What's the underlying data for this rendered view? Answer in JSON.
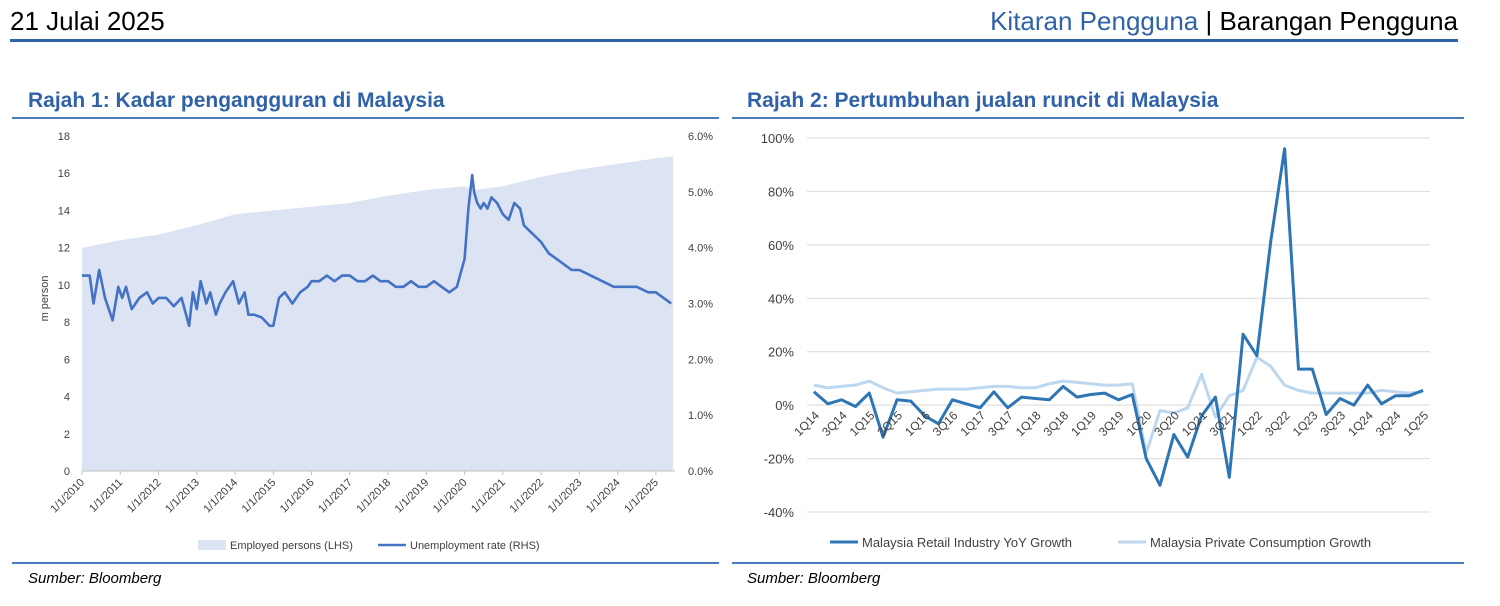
{
  "header": {
    "date": "21 Julai 2025",
    "section": "Kitaran Pengguna",
    "separator": " | ",
    "subsection": "Barangan Pengguna"
  },
  "colors": {
    "accent": "#2f62a8",
    "employed_fill": "#dce3f3",
    "unemployment_line": "#4472c4",
    "retail_line": "#2e75b6",
    "consumption_line": "#bdd7ee"
  },
  "figure1": {
    "title": "Rajah 1: Kadar pengangguran di Malaysia",
    "source": "Sumber: Bloomberg"
  },
  "figure2": {
    "title": "Rajah 2: Pertumbuhan jualan runcit di Malaysia",
    "source": "Sumber: Bloomberg"
  },
  "chart_data": [
    {
      "type": "area",
      "title": "",
      "ylabel": "m person",
      "y2label": "",
      "ylim": [
        0,
        18
      ],
      "y2lim": [
        0,
        6
      ],
      "yticks": [
        "0",
        "2",
        "4",
        "6",
        "8",
        "10",
        "12",
        "14",
        "16",
        "18"
      ],
      "y2ticks": [
        "0.0%",
        "1.0%",
        "2.0%",
        "3.0%",
        "4.0%",
        "5.0%",
        "6.0%"
      ],
      "xticks": [
        "1/1/2010",
        "1/1/2011",
        "1/1/2012",
        "1/1/2013",
        "1/1/2014",
        "1/1/2015",
        "1/1/2016",
        "1/1/2017",
        "1/1/2018",
        "1/1/2019",
        "1/1/2020",
        "1/1/2021",
        "1/1/2022",
        "1/1/2023",
        "1/1/2024",
        "1/1/2025"
      ],
      "legend_position": "bottom",
      "grid": false,
      "series": [
        {
          "name": "Employed persons (LHS)",
          "type": "area",
          "axis": "left",
          "x": [
            2010.0,
            2011.0,
            2012.0,
            2013.0,
            2014.0,
            2015.0,
            2016.0,
            2017.0,
            2018.0,
            2019.0,
            2020.0,
            2020.25,
            2021.0,
            2022.0,
            2023.0,
            2024.0,
            2025.0,
            2025.45
          ],
          "values": [
            12.0,
            12.4,
            12.7,
            13.2,
            13.8,
            14.0,
            14.2,
            14.4,
            14.8,
            15.1,
            15.3,
            15.1,
            15.3,
            15.8,
            16.2,
            16.5,
            16.8,
            16.9
          ]
        },
        {
          "name": "Unemployment rate (RHS)",
          "type": "line",
          "axis": "right",
          "x": [
            2010.0,
            2010.2,
            2010.3,
            2010.45,
            2010.6,
            2010.8,
            2010.95,
            2011.05,
            2011.15,
            2011.3,
            2011.5,
            2011.7,
            2011.85,
            2012.0,
            2012.2,
            2012.4,
            2012.6,
            2012.8,
            2012.9,
            2013.0,
            2013.1,
            2013.25,
            2013.35,
            2013.5,
            2013.6,
            2013.75,
            2013.95,
            2014.1,
            2014.25,
            2014.35,
            2014.5,
            2014.7,
            2014.9,
            2015.0,
            2015.15,
            2015.3,
            2015.5,
            2015.7,
            2015.9,
            2016.0,
            2016.2,
            2016.4,
            2016.6,
            2016.8,
            2017.0,
            2017.2,
            2017.4,
            2017.6,
            2017.8,
            2018.0,
            2018.2,
            2018.4,
            2018.6,
            2018.8,
            2019.0,
            2019.2,
            2019.4,
            2019.6,
            2019.8,
            2020.0,
            2020.1,
            2020.2,
            2020.25,
            2020.33,
            2020.42,
            2020.5,
            2020.6,
            2020.7,
            2020.85,
            2021.0,
            2021.15,
            2021.3,
            2021.45,
            2021.55,
            2021.7,
            2021.85,
            2022.0,
            2022.2,
            2022.4,
            2022.6,
            2022.8,
            2023.0,
            2023.3,
            2023.6,
            2023.9,
            2024.2,
            2024.5,
            2024.8,
            2025.0,
            2025.2,
            2025.4
          ],
          "values": [
            3.5,
            3.5,
            3.0,
            3.6,
            3.1,
            2.7,
            3.3,
            3.1,
            3.3,
            2.9,
            3.1,
            3.2,
            3.0,
            3.1,
            3.1,
            2.95,
            3.1,
            2.6,
            3.2,
            2.9,
            3.4,
            3.0,
            3.2,
            2.8,
            3.0,
            3.2,
            3.4,
            3.0,
            3.2,
            2.8,
            2.8,
            2.75,
            2.6,
            2.6,
            3.1,
            3.2,
            3.0,
            3.2,
            3.3,
            3.4,
            3.4,
            3.5,
            3.4,
            3.5,
            3.5,
            3.4,
            3.4,
            3.5,
            3.4,
            3.4,
            3.3,
            3.3,
            3.4,
            3.3,
            3.3,
            3.4,
            3.3,
            3.2,
            3.3,
            3.8,
            4.7,
            5.3,
            5.0,
            4.8,
            4.7,
            4.8,
            4.7,
            4.9,
            4.8,
            4.6,
            4.5,
            4.8,
            4.7,
            4.4,
            4.3,
            4.2,
            4.1,
            3.9,
            3.8,
            3.7,
            3.6,
            3.6,
            3.5,
            3.4,
            3.3,
            3.3,
            3.3,
            3.2,
            3.2,
            3.1,
            3.0
          ]
        }
      ]
    },
    {
      "type": "line",
      "title": "",
      "xlabel": "",
      "ylabel": "",
      "ylim": [
        -40,
        100
      ],
      "yticks": [
        "-40%",
        "-20%",
        "0%",
        "20%",
        "40%",
        "60%",
        "80%",
        "100%"
      ],
      "grid": true,
      "legend_position": "bottom",
      "xticks": [
        "1Q14",
        "3Q14",
        "1Q15",
        "3Q15",
        "1Q16",
        "3Q16",
        "1Q17",
        "3Q17",
        "1Q18",
        "3Q18",
        "1Q19",
        "3Q19",
        "1Q20",
        "3Q20",
        "1Q21",
        "3Q21",
        "1Q22",
        "3Q22",
        "1Q23",
        "3Q23",
        "1Q24",
        "3Q24",
        "1Q25"
      ],
      "series": [
        {
          "name": "Malaysia Retail Industry YoY Growth",
          "values": [
            5,
            0.5,
            2,
            -0.5,
            4.5,
            -12,
            2,
            1.5,
            -4,
            -7,
            2,
            0.5,
            -1,
            5,
            -1,
            3,
            2.5,
            2,
            7,
            3,
            4,
            4.5,
            2,
            4,
            -20,
            -30,
            -11,
            -19.5,
            -4,
            3,
            -27,
            26.5,
            18.5,
            61.5,
            96,
            13.5,
            13.5,
            -3.5,
            2.5,
            0,
            7.5,
            0.5,
            3.5,
            3.5,
            5.5
          ]
        },
        {
          "name": "Malaysia Private Consumption Growth",
          "values": [
            7.5,
            6.5,
            7,
            7.5,
            9,
            6.5,
            4.5,
            5,
            5.5,
            6,
            6,
            6,
            6.5,
            7,
            7,
            6.5,
            6.5,
            8,
            9,
            8.5,
            8,
            7.5,
            7.5,
            8,
            -18,
            -2,
            -3,
            -1,
            11.5,
            -4.5,
            3.5,
            5.5,
            18,
            14.5,
            7.5,
            5.5,
            4.5,
            4.5,
            4.5,
            4.5,
            4.5,
            5.5,
            5,
            4.5,
            5
          ]
        }
      ]
    }
  ]
}
